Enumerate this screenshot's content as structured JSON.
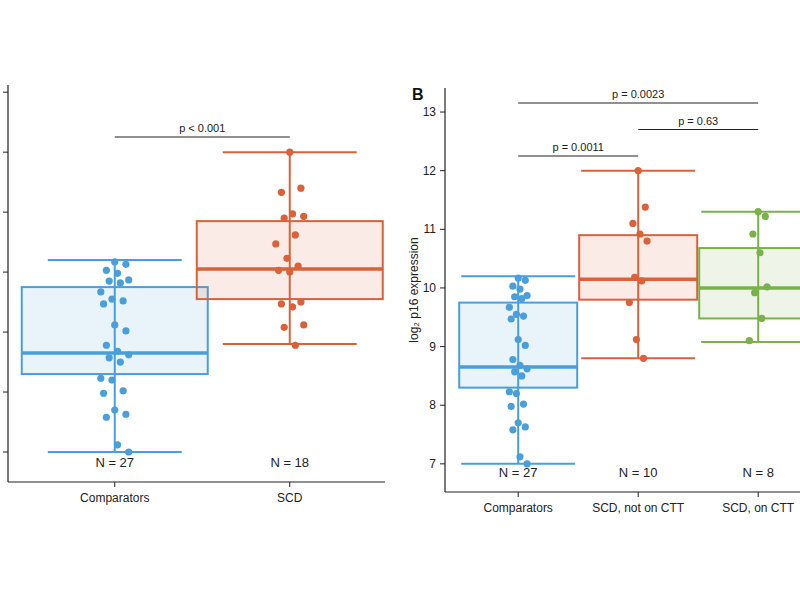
{
  "chart_data": [
    {
      "type": "box",
      "categories": [
        "Comparators",
        "SCD"
      ],
      "colors": [
        "#4a9fdb",
        "#d9623b"
      ],
      "ylim": [
        6.5,
        13.12
      ],
      "yticks": [
        7,
        8,
        9,
        10,
        11,
        12,
        13
      ],
      "tick_labels": "x",
      "boxes": [
        {
          "min": 7.0,
          "q1": 8.3,
          "median": 8.65,
          "q3": 9.75,
          "max": 10.2,
          "points": [
            10.17,
            10.13,
            10.03,
            9.98,
            9.87,
            9.85,
            9.82,
            9.67,
            9.55,
            9.52,
            9.47,
            9.12,
            9.02,
            8.78,
            8.68,
            8.62,
            8.57,
            8.5,
            8.23,
            8.2,
            8.02,
            7.98,
            7.7,
            7.63,
            7.58,
            7.12,
            7.0
          ]
        },
        {
          "min": 8.8,
          "q1": 9.55,
          "median": 10.05,
          "q3": 10.85,
          "max": 12.0,
          "points": [
            12.0,
            11.4,
            11.33,
            10.97,
            10.93,
            10.9,
            10.62,
            10.47,
            10.23,
            10.1,
            10.03,
            10.0,
            9.5,
            9.47,
            9.42,
            9.12,
            9.08,
            8.78
          ]
        }
      ],
      "n_labels": [
        "N = 27",
        "N = 18"
      ],
      "comparisons": [
        {
          "from": "Comparators",
          "to": "SCD",
          "label": "p < 0.001"
        }
      ]
    },
    {
      "type": "box",
      "panel_label": "B",
      "y_label": "log₂ p16 expression",
      "categories": [
        "Comparators",
        "SCD, not on CTT",
        "SCD, on CTT"
      ],
      "colors": [
        "#4a9fdb",
        "#d9623b",
        "#7ab24a"
      ],
      "ylim": [
        6.52,
        13.41
      ],
      "yticks": [
        7,
        8,
        9,
        10,
        11,
        12,
        13
      ],
      "boxes": [
        {
          "min": 7.0,
          "q1": 8.3,
          "median": 8.65,
          "q3": 9.75,
          "max": 10.2,
          "points": [
            10.17,
            10.13,
            10.03,
            9.98,
            9.87,
            9.85,
            9.82,
            9.67,
            9.55,
            9.52,
            9.47,
            9.12,
            9.02,
            8.78,
            8.68,
            8.62,
            8.57,
            8.5,
            8.23,
            8.2,
            8.02,
            7.98,
            7.7,
            7.63,
            7.58,
            7.12,
            7.0
          ]
        },
        {
          "min": 8.8,
          "q1": 9.8,
          "median": 10.15,
          "q3": 10.9,
          "max": 12.0,
          "points": [
            12.0,
            11.38,
            11.1,
            10.92,
            10.8,
            10.18,
            10.12,
            9.75,
            9.12,
            8.8
          ]
        },
        {
          "min": 9.08,
          "q1": 9.48,
          "median": 10.0,
          "q3": 10.68,
          "max": 11.3,
          "points": [
            11.3,
            11.22,
            10.92,
            10.6,
            10.02,
            9.92,
            9.48,
            9.1
          ]
        }
      ],
      "n_labels": [
        "N = 27",
        "N = 10",
        "N = 8"
      ],
      "comparisons": [
        {
          "from": "Comparators",
          "to": "SCD, on CTT",
          "label": "p = 0.0023"
        },
        {
          "from": "SCD, not on CTT",
          "to": "SCD, on CTT",
          "label": "p = 0.63"
        },
        {
          "from": "Comparators",
          "to": "SCD, not on CTT",
          "label": "p = 0.0011"
        }
      ]
    }
  ]
}
